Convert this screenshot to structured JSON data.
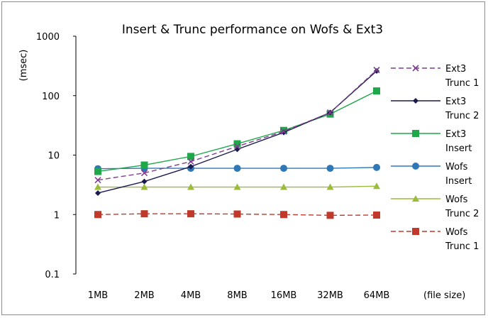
{
  "chart_data": {
    "type": "line",
    "title": "Insert & Trunc performance on Wofs & Ext3",
    "ylabel": "(msec)",
    "xlabel": "(file size)",
    "yscale": "log",
    "ylim": [
      0.1,
      1000
    ],
    "yticks": [
      "0.1",
      "1",
      "10",
      "100",
      "1000"
    ],
    "grid": false,
    "legend": "right",
    "categories": [
      "1MB",
      "2MB",
      "4MB",
      "8MB",
      "16MB",
      "32MB",
      "64MB"
    ],
    "series": [
      {
        "name": "Ext3 Trunc 1",
        "legend_lines": [
          "Ext3",
          "Trunc 1"
        ],
        "color": "#7f3f8f",
        "dash": true,
        "marker": "x",
        "values": [
          3.8,
          5.0,
          7.8,
          14,
          25,
          52,
          270
        ]
      },
      {
        "name": "Ext3 Trunc 2",
        "legend_lines": [
          "Ext3",
          "Trunc 2"
        ],
        "color": "#1a1a4e",
        "dash": false,
        "marker": "diamond",
        "values": [
          2.3,
          3.6,
          6.4,
          12.5,
          24,
          52,
          260
        ]
      },
      {
        "name": "Ext3 Insert",
        "legend_lines": [
          "Ext3",
          "Insert"
        ],
        "color": "#1fa84a",
        "dash": false,
        "marker": "square",
        "values": [
          5.3,
          6.8,
          9.5,
          15.5,
          26,
          49,
          120
        ]
      },
      {
        "name": "Wofs Insert",
        "legend_lines": [
          "Wofs",
          "Insert"
        ],
        "color": "#2f78b8",
        "dash": false,
        "marker": "circle",
        "values": [
          5.9,
          6.0,
          6.0,
          6.0,
          6.0,
          6.0,
          6.2
        ]
      },
      {
        "name": "Wofs Trunc 2",
        "legend_lines": [
          "Wofs",
          "Trunc 2"
        ],
        "color": "#9bbb3b",
        "dash": false,
        "marker": "triangle",
        "values": [
          2.9,
          2.9,
          2.9,
          2.9,
          2.9,
          2.9,
          3.0
        ]
      },
      {
        "name": "Wofs Trunc 1",
        "legend_lines": [
          "Wofs",
          "Trunc 1"
        ],
        "color": "#c0392b",
        "dash": true,
        "marker": "square",
        "values": [
          1.0,
          1.03,
          1.03,
          1.02,
          1.0,
          0.97,
          0.98
        ]
      }
    ]
  }
}
